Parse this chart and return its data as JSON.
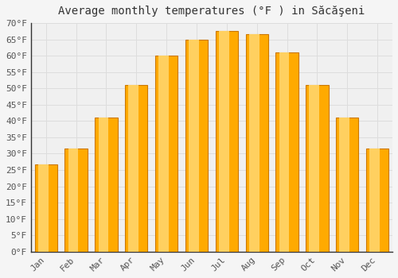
{
  "title": "Average monthly temperatures (°F ) in Săcăşeni",
  "months": [
    "Jan",
    "Feb",
    "Mar",
    "Apr",
    "May",
    "Jun",
    "Jul",
    "Aug",
    "Sep",
    "Oct",
    "Nov",
    "Dec"
  ],
  "values": [
    26.6,
    31.6,
    41.0,
    51.0,
    60.0,
    65.0,
    67.5,
    66.5,
    61.0,
    51.0,
    41.0,
    31.5
  ],
  "bar_color_main": "#FFAA00",
  "bar_color_light": "#FFD060",
  "bar_color_dark": "#E08000",
  "bar_edge_color": "#CC7700",
  "ylim": [
    0,
    70
  ],
  "ytick_step": 5,
  "background_color": "#f5f5f5",
  "plot_bg_color": "#f0f0f0",
  "grid_color": "#dddddd",
  "title_fontsize": 10,
  "tick_fontsize": 8,
  "font_family": "monospace",
  "tick_color": "#555555",
  "spine_color": "#333333"
}
